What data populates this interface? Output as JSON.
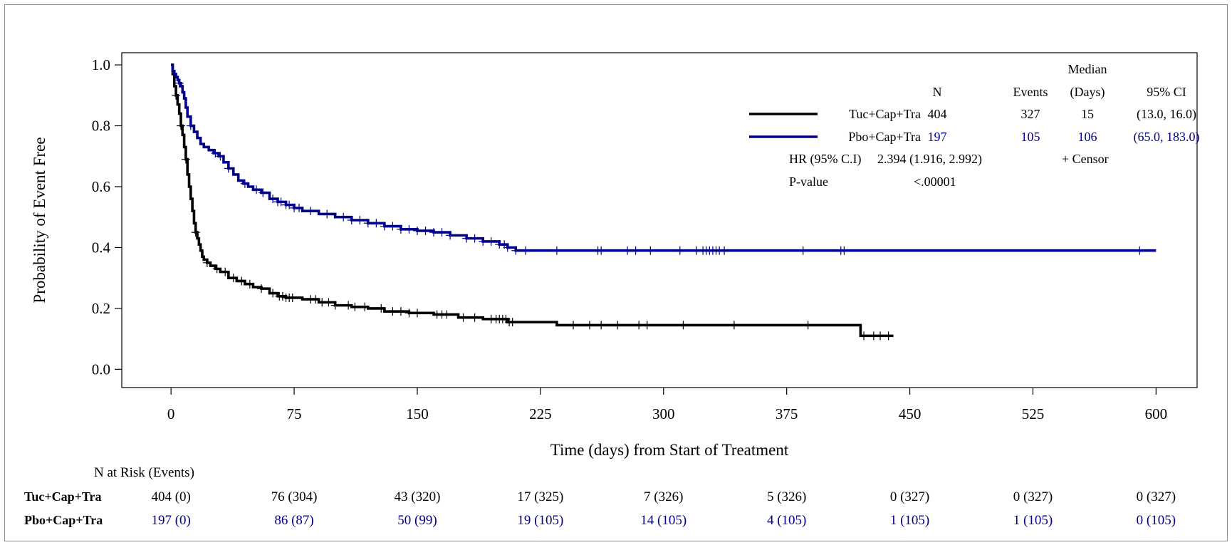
{
  "chart_data": {
    "type": "line",
    "subtype": "kaplan-meier",
    "title": "",
    "xlabel": "Time (days) from Start of Treatment",
    "ylabel": "Probability of Event Free",
    "xlim": [
      -30,
      625
    ],
    "ylim": [
      -0.06,
      1.04
    ],
    "xticks": [
      0,
      75,
      150,
      225,
      300,
      375,
      450,
      525,
      600
    ],
    "yticks": [
      "0.0",
      "0.2",
      "0.4",
      "0.6",
      "0.8",
      "1.0"
    ],
    "grid": false,
    "legend_position": "top-right",
    "legend": {
      "col_header_top": "Median",
      "col_headers": [
        "N",
        "Events",
        "(Days)",
        "95% CI"
      ],
      "rows": [
        {
          "name": "Tuc+Cap+Tra",
          "n": "404",
          "events": "327",
          "median": "15",
          "ci": "(13.0, 16.0)",
          "color": "#000000"
        },
        {
          "name": "Pbo+Cap+Tra",
          "n": "197",
          "events": "105",
          "median": "106",
          "ci": "(65.0, 183.0)",
          "color": "#00008b"
        }
      ],
      "hr_label": "HR (95% C.I)",
      "hr_value": "2.394 (1.916, 2.992)",
      "censor_label": "+ Censor",
      "p_label": "P-value",
      "p_value": "<.00001"
    },
    "series": [
      {
        "name": "Tuc+Cap+Tra",
        "color": "#000000",
        "x": [
          0,
          1,
          2,
          3,
          4,
          5,
          6,
          7,
          8,
          9,
          10,
          11,
          12,
          13,
          14,
          15,
          16,
          17,
          18,
          19,
          20,
          22,
          24,
          27,
          30,
          35,
          40,
          45,
          50,
          55,
          60,
          65,
          70,
          80,
          90,
          100,
          110,
          120,
          130,
          145,
          160,
          175,
          190,
          205,
          235,
          300,
          360,
          420,
          440
        ],
        "y": [
          1.0,
          0.97,
          0.93,
          0.9,
          0.87,
          0.84,
          0.8,
          0.77,
          0.73,
          0.69,
          0.64,
          0.6,
          0.56,
          0.52,
          0.48,
          0.45,
          0.43,
          0.41,
          0.39,
          0.37,
          0.36,
          0.35,
          0.34,
          0.33,
          0.32,
          0.3,
          0.29,
          0.28,
          0.27,
          0.265,
          0.25,
          0.24,
          0.235,
          0.23,
          0.22,
          0.21,
          0.205,
          0.2,
          0.19,
          0.185,
          0.18,
          0.17,
          0.165,
          0.155,
          0.145,
          0.145,
          0.145,
          0.11,
          0.11
        ],
        "censor_x": [
          3,
          6,
          9,
          15,
          22,
          28,
          33,
          38,
          43,
          48,
          55,
          62,
          66,
          68,
          70,
          72,
          74,
          85,
          88,
          92,
          96,
          100,
          108,
          112,
          118,
          128,
          135,
          140,
          145,
          150,
          162,
          165,
          168,
          178,
          185,
          195,
          198,
          200,
          202,
          204,
          206,
          208,
          245,
          255,
          262,
          272,
          285,
          290,
          312,
          343,
          388,
          422,
          428,
          432,
          437
        ]
      },
      {
        "name": "Pbo+Cap+Tra",
        "color": "#00008b",
        "x": [
          0,
          1,
          2,
          3,
          4,
          5,
          6,
          7,
          8,
          9,
          10,
          12,
          14,
          16,
          18,
          20,
          23,
          26,
          29,
          32,
          35,
          38,
          41,
          44,
          47,
          50,
          55,
          60,
          65,
          70,
          75,
          80,
          90,
          100,
          110,
          120,
          130,
          140,
          150,
          160,
          170,
          180,
          190,
          200,
          205,
          210,
          600
        ],
        "y": [
          1.0,
          0.98,
          0.97,
          0.96,
          0.95,
          0.94,
          0.93,
          0.91,
          0.89,
          0.86,
          0.83,
          0.8,
          0.78,
          0.76,
          0.74,
          0.73,
          0.72,
          0.71,
          0.7,
          0.68,
          0.66,
          0.64,
          0.62,
          0.61,
          0.6,
          0.59,
          0.58,
          0.56,
          0.55,
          0.54,
          0.53,
          0.52,
          0.51,
          0.5,
          0.49,
          0.48,
          0.47,
          0.46,
          0.455,
          0.45,
          0.44,
          0.43,
          0.42,
          0.41,
          0.4,
          0.39,
          0.39
        ],
        "censor_x": [
          5,
          12,
          27,
          30,
          35,
          45,
          52,
          56,
          62,
          65,
          67,
          70,
          72,
          75,
          78,
          85,
          95,
          105,
          110,
          115,
          120,
          125,
          130,
          135,
          140,
          145,
          150,
          155,
          160,
          165,
          170,
          180,
          185,
          190,
          195,
          200,
          203,
          205,
          210,
          216,
          235,
          260,
          262,
          278,
          283,
          292,
          310,
          320,
          324,
          326,
          328,
          330,
          332,
          334,
          337,
          385,
          408,
          410,
          590
        ]
      }
    ],
    "at_risk": {
      "title": "N at Risk (Events)",
      "rows": [
        {
          "name": "Tuc+Cap+Tra",
          "color": "#000000",
          "values": [
            "404 (0)",
            "76 (304)",
            "43 (320)",
            "17 (325)",
            "7 (326)",
            "5 (326)",
            "0 (327)",
            "0 (327)",
            "0 (327)"
          ]
        },
        {
          "name": "Pbo+Cap+Tra",
          "color": "#00008b",
          "values": [
            "197 (0)",
            "86 (87)",
            "50 (99)",
            "19 (105)",
            "14 (105)",
            "4 (105)",
            "1 (105)",
            "1 (105)",
            "0 (105)"
          ]
        }
      ]
    }
  }
}
